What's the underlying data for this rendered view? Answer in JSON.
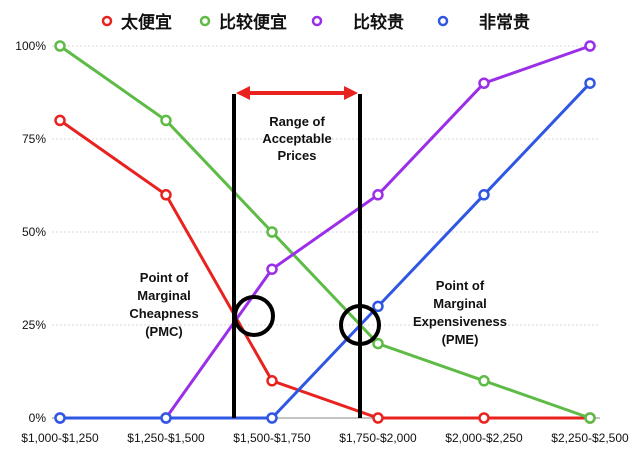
{
  "chart_data": {
    "type": "line",
    "title": "",
    "xlabel": "",
    "ylabel": "",
    "categories": [
      "$1,000-$1,250",
      "$1,250-$1,500",
      "$1,500-$1,750",
      "$1,750-$2,000",
      "$2,000-$2,250",
      "$2,250-$2,500"
    ],
    "yticks": [
      "0%",
      "25%",
      "50%",
      "75%",
      "100%"
    ],
    "ylim": [
      0,
      100
    ],
    "grid": "horizontal",
    "legend_placement": "top",
    "series": [
      {
        "name": "太便宜",
        "color": "#e8231f",
        "values": [
          80,
          60,
          10,
          0,
          0,
          0
        ]
      },
      {
        "name": "比较便宜",
        "color": "#5dbb46",
        "values": [
          100,
          80,
          50,
          20,
          10,
          0
        ]
      },
      {
        "name": "比较贵",
        "color": "#9b2ee8",
        "values": [
          0,
          0,
          40,
          60,
          90,
          100
        ]
      },
      {
        "name": "非常贵",
        "color": "#3057e3",
        "values": [
          0,
          0,
          0,
          30,
          60,
          90
        ]
      }
    ],
    "annotations": {
      "range": [
        "Range of",
        "Acceptable",
        "Prices"
      ],
      "pmc": [
        "Point of",
        "Marginal",
        "Cheapness",
        "(PMC)"
      ],
      "pme": [
        "Point of",
        "Marginal",
        "Expensiveness",
        "(PME)"
      ],
      "range_color": "#e8231f"
    }
  }
}
